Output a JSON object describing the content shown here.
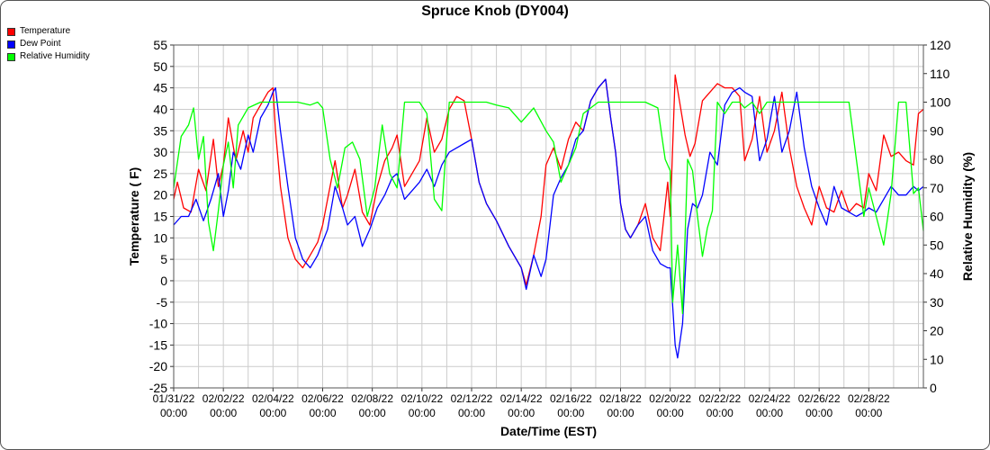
{
  "chart_data": {
    "type": "line",
    "title": "Spruce Knob (DY004)",
    "xlabel": "Date/Time (EST)",
    "ylabel_left": "Temperature ( F)",
    "ylabel_right": "Relative Humidity (%)",
    "ylim_left": [
      -25,
      55
    ],
    "ylim_right": [
      0,
      120
    ],
    "x_range": [
      0,
      30.2
    ],
    "x_ticks": [
      {
        "x": 0,
        "date": "01/31/22",
        "time": "00:00"
      },
      {
        "x": 2,
        "date": "02/02/22",
        "time": "00:00"
      },
      {
        "x": 4,
        "date": "02/04/22",
        "time": "00:00"
      },
      {
        "x": 6,
        "date": "02/06/22",
        "time": "00:00"
      },
      {
        "x": 8,
        "date": "02/08/22",
        "time": "00:00"
      },
      {
        "x": 10,
        "date": "02/10/22",
        "time": "00:00"
      },
      {
        "x": 12,
        "date": "02/12/22",
        "time": "00:00"
      },
      {
        "x": 14,
        "date": "02/14/22",
        "time": "00:00"
      },
      {
        "x": 16,
        "date": "02/16/22",
        "time": "00:00"
      },
      {
        "x": 18,
        "date": "02/18/22",
        "time": "00:00"
      },
      {
        "x": 20,
        "date": "02/20/22",
        "time": "00:00"
      },
      {
        "x": 22,
        "date": "02/22/22",
        "time": "00:00"
      },
      {
        "x": 24,
        "date": "02/24/22",
        "time": "00:00"
      },
      {
        "x": 26,
        "date": "02/26/22",
        "time": "00:00"
      },
      {
        "x": 28,
        "date": "02/28/22",
        "time": "00:00"
      }
    ],
    "y_ticks_left": [
      55,
      50,
      45,
      40,
      35,
      30,
      25,
      20,
      15,
      10,
      5,
      0,
      -5,
      -10,
      -15,
      -20,
      -25
    ],
    "y_ticks_right": [
      120,
      110,
      100,
      90,
      80,
      70,
      60,
      50,
      40,
      30,
      20,
      10,
      0
    ],
    "grid": true,
    "legend_position": "top-left",
    "series": [
      {
        "name": "Temperature",
        "color": "#ff0000",
        "axis": "left",
        "x": [
          0,
          0.15,
          0.4,
          0.7,
          1.0,
          1.3,
          1.6,
          1.8,
          2.0,
          2.2,
          2.5,
          2.8,
          3.0,
          3.2,
          3.5,
          3.8,
          4.0,
          4.1,
          4.3,
          4.6,
          4.9,
          5.2,
          5.5,
          5.8,
          6.0,
          6.2,
          6.5,
          6.8,
          7.0,
          7.3,
          7.6,
          7.9,
          8.2,
          8.5,
          8.8,
          9.0,
          9.3,
          9.6,
          9.9,
          10.2,
          10.5,
          10.8,
          11.1,
          11.4,
          11.7,
          12.0,
          12.3,
          12.6,
          13.0,
          13.5,
          14.0,
          14.2,
          14.5,
          14.8,
          15.0,
          15.3,
          15.6,
          15.9,
          16.2,
          16.5,
          16.8,
          17.1,
          17.4,
          17.6,
          17.8,
          18.0,
          18.2,
          18.4,
          18.7,
          19.0,
          19.3,
          19.6,
          19.9,
          20.0,
          20.2,
          20.4,
          20.6,
          20.8,
          21.0,
          21.3,
          21.6,
          21.9,
          22.2,
          22.5,
          22.8,
          23.0,
          23.3,
          23.6,
          23.9,
          24.2,
          24.5,
          24.8,
          25.1,
          25.4,
          25.7,
          26.0,
          26.3,
          26.6,
          26.9,
          27.2,
          27.5,
          27.8,
          28.0,
          28.3,
          28.6,
          28.9,
          29.2,
          29.5,
          29.8,
          30.0,
          30.2
        ],
        "values": [
          19,
          23,
          17,
          16,
          26,
          21,
          33,
          22,
          27,
          38,
          28,
          35,
          30,
          38,
          41,
          44,
          45,
          35,
          22,
          10,
          5,
          3,
          6,
          9,
          13,
          19,
          28,
          17,
          20,
          26,
          16,
          13,
          22,
          28,
          31,
          34,
          22,
          25,
          28,
          38,
          30,
          33,
          40,
          43,
          42,
          33,
          23,
          18,
          14,
          8,
          3,
          -1,
          6,
          15,
          27,
          31,
          26,
          33,
          37,
          35,
          42,
          45,
          47,
          38,
          30,
          18,
          12,
          10,
          13,
          18,
          10,
          7,
          23,
          15,
          48,
          41,
          34,
          29,
          32,
          42,
          44,
          46,
          45,
          45,
          43,
          28,
          33,
          43,
          30,
          35,
          44,
          31,
          22,
          17,
          13,
          22,
          17,
          16,
          21,
          16,
          18,
          17,
          25,
          21,
          34,
          29,
          30,
          28,
          27,
          39,
          40
        ]
      },
      {
        "name": "Dew Point",
        "color": "#0000ff",
        "axis": "left",
        "x": [
          0,
          0.3,
          0.6,
          0.9,
          1.2,
          1.5,
          1.8,
          2.0,
          2.2,
          2.4,
          2.7,
          3.0,
          3.2,
          3.5,
          3.8,
          4.0,
          4.1,
          4.3,
          4.6,
          4.9,
          5.2,
          5.5,
          5.8,
          6.0,
          6.2,
          6.5,
          6.8,
          7.0,
          7.3,
          7.6,
          7.9,
          8.2,
          8.5,
          8.8,
          9.0,
          9.3,
          9.6,
          9.9,
          10.2,
          10.5,
          10.8,
          11.1,
          11.4,
          11.7,
          12.0,
          12.3,
          12.6,
          13.0,
          13.5,
          14.0,
          14.2,
          14.5,
          14.8,
          15.0,
          15.3,
          15.6,
          15.9,
          16.2,
          16.5,
          16.8,
          17.1,
          17.4,
          17.6,
          17.8,
          18.0,
          18.2,
          18.4,
          18.7,
          19.0,
          19.3,
          19.6,
          19.9,
          20.0,
          20.2,
          20.3,
          20.5,
          20.7,
          20.9,
          21.1,
          21.3,
          21.6,
          21.9,
          22.2,
          22.5,
          22.8,
          23.0,
          23.3,
          23.6,
          23.9,
          24.2,
          24.5,
          24.8,
          25.1,
          25.4,
          25.7,
          26.0,
          26.3,
          26.6,
          26.9,
          27.2,
          27.5,
          27.8,
          28.0,
          28.3,
          28.6,
          28.9,
          29.2,
          29.5,
          29.8,
          30.0,
          30.2
        ],
        "values": [
          13,
          15,
          15,
          19,
          14,
          19,
          25,
          15,
          21,
          30,
          26,
          34,
          30,
          38,
          41,
          44,
          45,
          35,
          22,
          10,
          5,
          3,
          6,
          9,
          12,
          22,
          17,
          13,
          15,
          8,
          12,
          17,
          20,
          24,
          25,
          19,
          21,
          23,
          26,
          22,
          27,
          30,
          31,
          32,
          33,
          23,
          18,
          14,
          8,
          3,
          -2,
          6,
          1,
          5,
          20,
          24,
          27,
          33,
          35,
          42,
          45,
          47,
          38,
          30,
          18,
          12,
          10,
          13,
          15,
          7,
          4,
          3,
          3,
          -15,
          -18,
          -10,
          12,
          18,
          17,
          20,
          30,
          27,
          41,
          44,
          45,
          44,
          43,
          28,
          33,
          43,
          30,
          35,
          44,
          31,
          22,
          17,
          13,
          22,
          17,
          16,
          15,
          16,
          17,
          16,
          19,
          22,
          20,
          20,
          22,
          21,
          22
        ]
      },
      {
        "name": "Relative Humidity",
        "color": "#00ff00",
        "axis": "right",
        "x": [
          0,
          0.3,
          0.6,
          0.8,
          1.0,
          1.2,
          1.4,
          1.6,
          1.8,
          2.0,
          2.2,
          2.4,
          2.6,
          2.8,
          3.0,
          3.5,
          4.0,
          4.5,
          5.0,
          5.5,
          5.8,
          6.0,
          6.3,
          6.6,
          6.9,
          7.2,
          7.5,
          7.8,
          8.1,
          8.4,
          8.7,
          9.0,
          9.3,
          9.6,
          9.9,
          10.2,
          10.5,
          10.8,
          11.1,
          11.4,
          11.7,
          12.0,
          12.3,
          12.6,
          13.0,
          13.5,
          14.0,
          14.5,
          15.0,
          15.3,
          15.6,
          15.9,
          16.2,
          16.5,
          16.8,
          17.1,
          17.4,
          17.7,
          18.0,
          18.5,
          19.0,
          19.5,
          19.8,
          20.0,
          20.1,
          20.3,
          20.5,
          20.7,
          20.9,
          21.1,
          21.3,
          21.5,
          21.7,
          21.9,
          22.2,
          22.5,
          22.8,
          23.0,
          23.3,
          23.6,
          23.9,
          24.2,
          24.5,
          24.8,
          25.1,
          25.4,
          25.7,
          26.0,
          26.3,
          26.6,
          26.9,
          27.2,
          27.5,
          27.8,
          28.0,
          28.3,
          28.6,
          28.9,
          29.2,
          29.5,
          29.8,
          30.0,
          30.2
        ],
        "values": [
          70,
          88,
          92,
          98,
          80,
          88,
          58,
          48,
          62,
          78,
          86,
          70,
          92,
          95,
          98,
          100,
          100,
          100,
          100,
          99,
          100,
          98,
          80,
          70,
          84,
          86,
          80,
          60,
          70,
          92,
          75,
          70,
          100,
          100,
          100,
          96,
          66,
          62,
          100,
          100,
          100,
          100,
          100,
          100,
          99,
          98,
          93,
          98,
          90,
          86,
          72,
          78,
          84,
          96,
          98,
          100,
          100,
          100,
          100,
          100,
          100,
          98,
          80,
          76,
          30,
          50,
          26,
          80,
          76,
          60,
          46,
          56,
          62,
          100,
          96,
          100,
          100,
          98,
          100,
          96,
          100,
          100,
          100,
          100,
          100,
          100,
          100,
          100,
          100,
          100,
          100,
          100,
          80,
          60,
          70,
          60,
          50,
          68,
          100,
          100,
          68,
          70,
          55
        ]
      }
    ]
  }
}
